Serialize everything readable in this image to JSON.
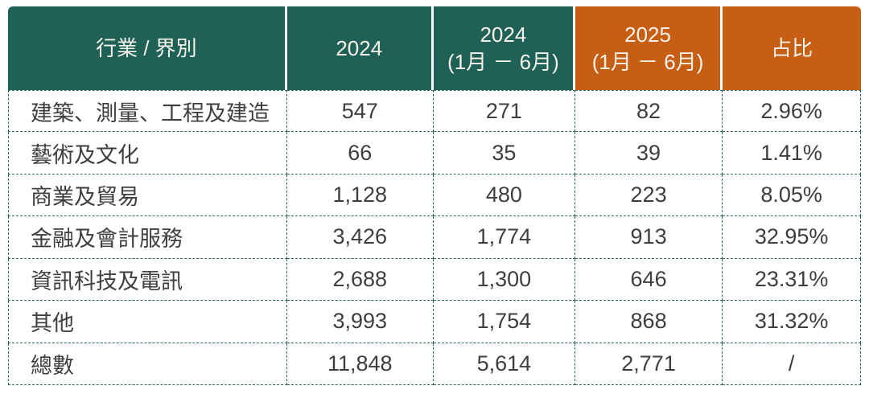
{
  "table": {
    "columns": [
      {
        "line1": "行業 / 界別",
        "line2": ""
      },
      {
        "line1": "2024",
        "line2": ""
      },
      {
        "line1": "2024",
        "line2": "(1月 － 6月)"
      },
      {
        "line1": "2025",
        "line2": "(1月 － 6月)"
      },
      {
        "line1": "占比",
        "line2": ""
      }
    ],
    "rows": [
      [
        "建築、測量、工程及建造",
        "547",
        "271",
        "82",
        "2.96%"
      ],
      [
        "藝術及文化",
        "66",
        "35",
        "39",
        "1.41%"
      ],
      [
        "商業及貿易",
        "1,128",
        "480",
        "223",
        "8.05%"
      ],
      [
        "金融及會計服務",
        "3,426",
        "1,774",
        "913",
        "32.95%"
      ],
      [
        "資訊科技及電訊",
        "2,688",
        "1,300",
        "646",
        "23.31%"
      ],
      [
        "其他",
        "3,993",
        "1,754",
        "868",
        "31.32%"
      ],
      [
        "總數",
        "11,848",
        "5,614",
        "2,771",
        "/"
      ]
    ]
  },
  "colors": {
    "header_teal": "#1F6057",
    "header_orange": "#C65F13",
    "dashed_border": "#2A6A60",
    "body_text": "#3E3E3E",
    "header_text": "#F5F2EA"
  },
  "chart_data": {
    "type": "table",
    "columns": [
      "行業 / 界別",
      "2024",
      "2024 (1月 － 6月)",
      "2025 (1月 － 6月)",
      "占比"
    ],
    "rows": [
      [
        "建築、測量、工程及建造",
        547,
        271,
        82,
        "2.96%"
      ],
      [
        "藝術及文化",
        66,
        35,
        39,
        "1.41%"
      ],
      [
        "商業及貿易",
        1128,
        480,
        223,
        "8.05%"
      ],
      [
        "金融及會計服務",
        3426,
        1774,
        913,
        "32.95%"
      ],
      [
        "資訊科技及電訊",
        2688,
        1300,
        646,
        "23.31%"
      ],
      [
        "其他",
        3993,
        1754,
        868,
        "31.32%"
      ],
      [
        "總數",
        11848,
        5614,
        2771,
        "/"
      ]
    ]
  }
}
